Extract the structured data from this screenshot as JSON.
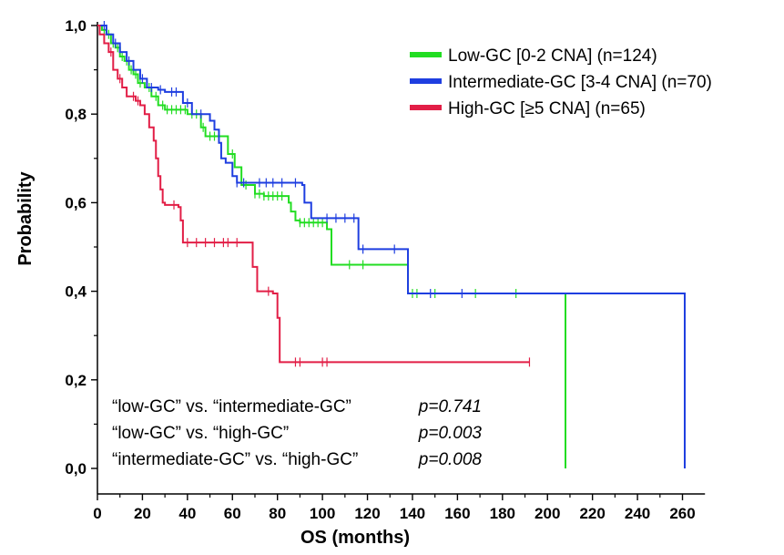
{
  "chart_data": {
    "type": "line",
    "subtype": "kaplan-meier-step",
    "title": "",
    "xlabel": "OS (months)",
    "ylabel": "Probability",
    "xlim": [
      0,
      270
    ],
    "ylim": [
      0,
      1.0
    ],
    "x_ticks": [
      0,
      20,
      40,
      60,
      80,
      100,
      120,
      140,
      160,
      180,
      200,
      220,
      240,
      260
    ],
    "x_tick_labels": [
      "0",
      "20",
      "40",
      "60",
      "80",
      "100",
      "120",
      "140",
      "160",
      "180",
      "200",
      "220",
      "240",
      "260"
    ],
    "y_ticks": [
      0,
      0.2,
      0.4,
      0.6,
      0.8,
      1.0
    ],
    "y_tick_labels": [
      "0,0",
      "0,2",
      "0,4",
      "0,6",
      "0,8",
      "1,0"
    ],
    "grid": false,
    "legend_position": "top-right",
    "series": [
      {
        "name": "Low-GC [0-2 CNA] (n=124)",
        "color": "#22dd22",
        "steps": [
          [
            0,
            1.0
          ],
          [
            2,
            0.99
          ],
          [
            4,
            0.98
          ],
          [
            6,
            0.96
          ],
          [
            8,
            0.95
          ],
          [
            10,
            0.93
          ],
          [
            12,
            0.92
          ],
          [
            14,
            0.9
          ],
          [
            16,
            0.89
          ],
          [
            18,
            0.87
          ],
          [
            21,
            0.86
          ],
          [
            24,
            0.84
          ],
          [
            27,
            0.82
          ],
          [
            30,
            0.81
          ],
          [
            40,
            0.8
          ],
          [
            46,
            0.77
          ],
          [
            48,
            0.75
          ],
          [
            56,
            0.75
          ],
          [
            58,
            0.71
          ],
          [
            61,
            0.68
          ],
          [
            64,
            0.64
          ],
          [
            70,
            0.62
          ],
          [
            74,
            0.615
          ],
          [
            85,
            0.6
          ],
          [
            86,
            0.58
          ],
          [
            88,
            0.56
          ],
          [
            90,
            0.555
          ],
          [
            102,
            0.54
          ],
          [
            104,
            0.46
          ],
          [
            137,
            0.46
          ],
          [
            138,
            0.395
          ],
          [
            208,
            0.395
          ],
          [
            208,
            0.0
          ]
        ],
        "censor_x": [
          3,
          5,
          7,
          9,
          11,
          13,
          15,
          17,
          19,
          23,
          26,
          29,
          31,
          33,
          35,
          37,
          39,
          42,
          44,
          47,
          50,
          52,
          54,
          60,
          66,
          70,
          72,
          74,
          76,
          78,
          80,
          82,
          90,
          92,
          94,
          96,
          98,
          100,
          112,
          118,
          140,
          142,
          150,
          168,
          186
        ]
      },
      {
        "name": "Intermediate-GC [3-4 CNA] (n=70)",
        "color": "#1e3ee0",
        "steps": [
          [
            0,
            1.0
          ],
          [
            4,
            0.98
          ],
          [
            7,
            0.96
          ],
          [
            10,
            0.94
          ],
          [
            13,
            0.92
          ],
          [
            16,
            0.9
          ],
          [
            19,
            0.88
          ],
          [
            22,
            0.86
          ],
          [
            27,
            0.855
          ],
          [
            30,
            0.85
          ],
          [
            38,
            0.825
          ],
          [
            42,
            0.8
          ],
          [
            50,
            0.785
          ],
          [
            52,
            0.765
          ],
          [
            54,
            0.735
          ],
          [
            55,
            0.7
          ],
          [
            57,
            0.69
          ],
          [
            60,
            0.66
          ],
          [
            62,
            0.645
          ],
          [
            91,
            0.64
          ],
          [
            92,
            0.6
          ],
          [
            95,
            0.565
          ],
          [
            115,
            0.565
          ],
          [
            116,
            0.495
          ],
          [
            137,
            0.495
          ],
          [
            138,
            0.395
          ],
          [
            261,
            0.395
          ],
          [
            261,
            0.0
          ]
        ],
        "censor_x": [
          3,
          8,
          14,
          20,
          24,
          28,
          33,
          35,
          40,
          46,
          62,
          65,
          72,
          75,
          78,
          82,
          88,
          102,
          106,
          110,
          114,
          118,
          132,
          148,
          162
        ]
      },
      {
        "name": "High-GC [≥5 CNA] (n=65)",
        "color": "#e21e46",
        "steps": [
          [
            0,
            1.0
          ],
          [
            1,
            0.98
          ],
          [
            3,
            0.96
          ],
          [
            5,
            0.94
          ],
          [
            7,
            0.9
          ],
          [
            9,
            0.88
          ],
          [
            11,
            0.86
          ],
          [
            13,
            0.84
          ],
          [
            17,
            0.83
          ],
          [
            19,
            0.82
          ],
          [
            21,
            0.8
          ],
          [
            23,
            0.77
          ],
          [
            25,
            0.74
          ],
          [
            26,
            0.7
          ],
          [
            27,
            0.66
          ],
          [
            28,
            0.63
          ],
          [
            29,
            0.6
          ],
          [
            30,
            0.595
          ],
          [
            36,
            0.59
          ],
          [
            37,
            0.56
          ],
          [
            38,
            0.51
          ],
          [
            68,
            0.51
          ],
          [
            69,
            0.455
          ],
          [
            71,
            0.4
          ],
          [
            78,
            0.395
          ],
          [
            80,
            0.34
          ],
          [
            81,
            0.24
          ],
          [
            192,
            0.24
          ]
        ],
        "censor_x": [
          6,
          10,
          16,
          18,
          34,
          40,
          44,
          48,
          52,
          56,
          58,
          62,
          76,
          88,
          90,
          100,
          102,
          192
        ]
      }
    ],
    "annotations": [
      {
        "comparison": "“low-GC” vs. “intermediate-GC”",
        "p": "p=0.741"
      },
      {
        "comparison": "“low-GC” vs. “high-GC”",
        "p": "p=0.003"
      },
      {
        "comparison": "“intermediate-GC” vs. “high-GC”",
        "p": "p=0.008"
      }
    ]
  }
}
